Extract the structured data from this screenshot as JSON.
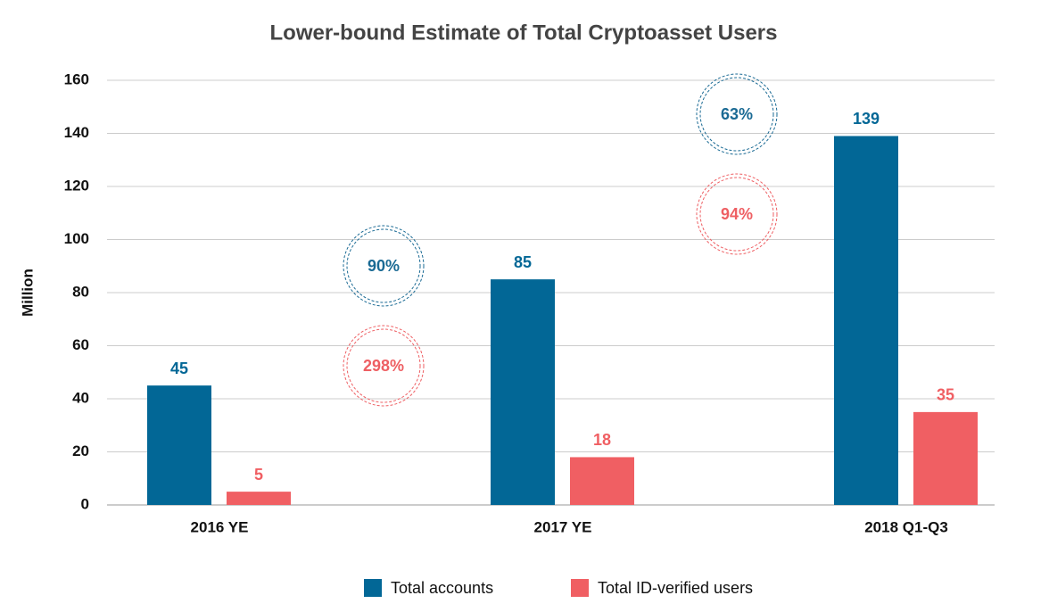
{
  "chart_data": {
    "type": "bar",
    "title": "Lower-bound Estimate of Total Cryptoasset Users",
    "ylabel": "Million",
    "categories": [
      "2016 YE",
      "2017 YE",
      "2018 Q1-Q3"
    ],
    "series": [
      {
        "name": "Total accounts",
        "color": "#026796",
        "values": [
          45,
          85,
          139
        ]
      },
      {
        "name": "Total ID-verified users",
        "color": "#f05f63",
        "values": [
          5,
          18,
          35
        ]
      }
    ],
    "annotations": [
      {
        "text": "90%",
        "color": "#1a6a94"
      },
      {
        "text": "298%",
        "color": "#ee5f63"
      },
      {
        "text": "63%",
        "color": "#1a6a94"
      },
      {
        "text": "94%",
        "color": "#ee5f63"
      }
    ],
    "ylim": [
      0,
      160
    ],
    "yticks": [
      0,
      20,
      40,
      60,
      80,
      100,
      120,
      140,
      160
    ],
    "grid": true,
    "legend": "bottom"
  }
}
